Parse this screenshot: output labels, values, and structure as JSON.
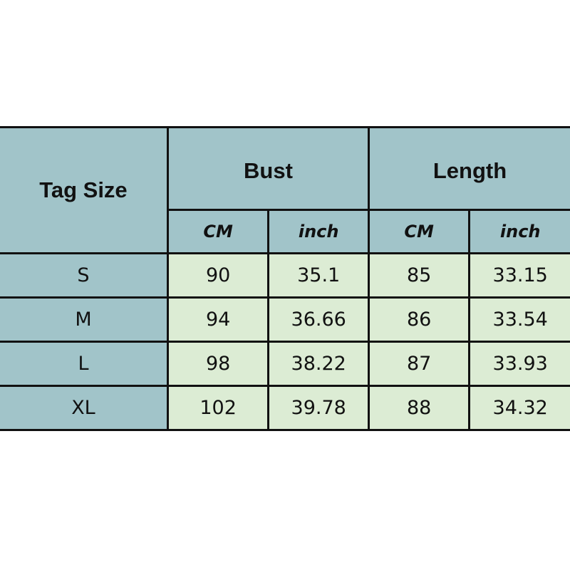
{
  "colors": {
    "header": "#a1c4c9",
    "data": "#dcecd4",
    "border": "#111111"
  },
  "table": {
    "tag_size": "Tag Size",
    "groups": [
      "Bust",
      "Length"
    ],
    "units": [
      "CM",
      "inch",
      "CM",
      "inch"
    ],
    "rows": [
      [
        "S",
        "90",
        "35.1",
        "85",
        "33.15"
      ],
      [
        "M",
        "94",
        "36.66",
        "86",
        "33.54"
      ],
      [
        "L",
        "98",
        "38.22",
        "87",
        "33.93"
      ],
      [
        "XL",
        "102",
        "39.78",
        "88",
        "34.32"
      ]
    ]
  }
}
